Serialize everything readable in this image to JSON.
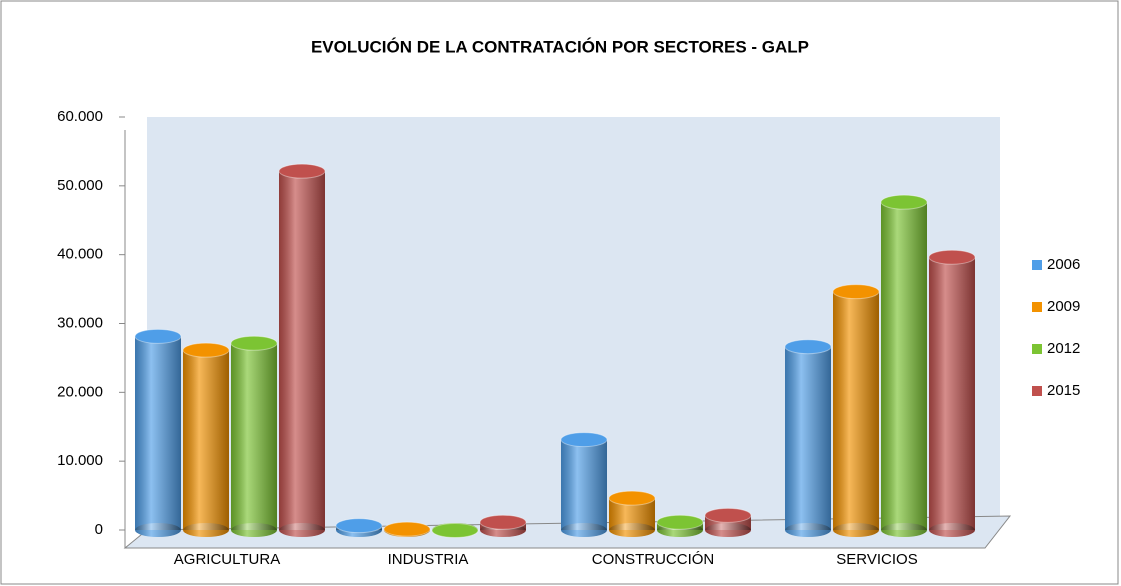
{
  "chart_data": {
    "type": "bar3d",
    "title": "EVOLUCIÓN DE LA CONTRATACIÓN POR SECTORES - GALP",
    "categories": [
      "AGRICULTURA",
      "INDUSTRIA",
      "CONSTRUCCIÓN",
      "SERVICIOS"
    ],
    "series": [
      {
        "name": "2006",
        "color": "#4f9ee8",
        "values": [
          29000,
          1500,
          14000,
          27500
        ]
      },
      {
        "name": "2009",
        "color": "#f39200",
        "values": [
          27000,
          1000,
          5500,
          35500
        ]
      },
      {
        "name": "2012",
        "color": "#7cc433",
        "values": [
          28000,
          800,
          2000,
          48500
        ]
      },
      {
        "name": "2015",
        "color": "#c0504d",
        "values": [
          53000,
          2000,
          3000,
          40500
        ]
      }
    ],
    "ylim": [
      0,
      60000
    ],
    "yticks": [
      0,
      {
        "value": 10000,
        "label": "10.000"
      },
      {
        "value": 20000,
        "label": "20.000"
      },
      {
        "value": 30000,
        "label": "30.000"
      },
      {
        "value": 40000,
        "label": "40.000"
      },
      {
        "value": 50000,
        "label": "50.000"
      },
      {
        "value": 60000,
        "label": "60.000"
      }
    ],
    "grid": false,
    "legend": "right"
  }
}
